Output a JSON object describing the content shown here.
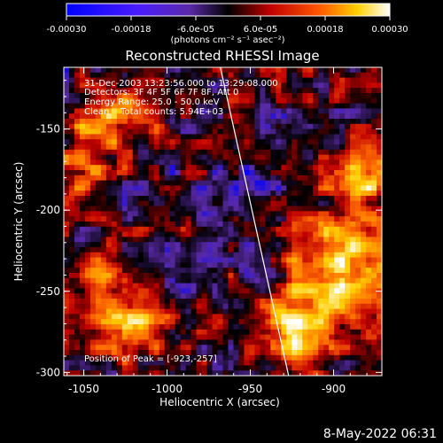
{
  "colorbar": {
    "tick_labels": [
      "-0.00030",
      "-0.00018",
      "-6.0e-05",
      "6.0e-05",
      "0.00018",
      "0.00030"
    ],
    "tick_values": [
      -0.0003,
      -0.00018,
      -6e-05,
      6e-05,
      0.00018,
      0.0003
    ],
    "range": [
      -0.0003,
      0.0003
    ],
    "unit_label": "(photons cm⁻² s⁻¹ asec⁻²)"
  },
  "chart_data": {
    "type": "heatmap",
    "title": "Reconstructed RHESSI Image",
    "xlabel": "Heliocentric X (arcsec)",
    "ylabel": "Heliocentric Y (arcsec)",
    "xlim": [
      -1062,
      -871
    ],
    "ylim": [
      -302,
      -112
    ],
    "x_ticks": [
      -1050,
      -1000,
      -950,
      -900
    ],
    "y_ticks": [
      -300,
      -250,
      -200,
      -150
    ],
    "x_tick_labels": [
      "-1050",
      "-1000",
      "-950",
      "-900"
    ],
    "y_tick_labels": [
      "-300",
      "-250",
      "-200",
      "-150"
    ],
    "info_lines": [
      "31-Dec-2003 13:23:56.000 to 13:29:08.000",
      "Detectors: 3F 4F 5F 6F 7F 8F, Att 0",
      "Energy Range: 25.0 - 50.0 keV",
      "Clean    Total counts: 5.94E+03"
    ],
    "peak_label": "Position of Peak = [-923,-257]",
    "peak": [
      -923,
      -257
    ],
    "limb_line": {
      "x": [
        -968,
        -927
      ],
      "y": [
        -112,
        -302
      ]
    },
    "colormap": [
      "#0000ff",
      "#5a2aa8",
      "#000000",
      "#c00000",
      "#ff6a00",
      "#ffd000",
      "#ffffff"
    ],
    "grid": false,
    "legend": "none"
  },
  "timestamp": "8-May-2022 06:31"
}
